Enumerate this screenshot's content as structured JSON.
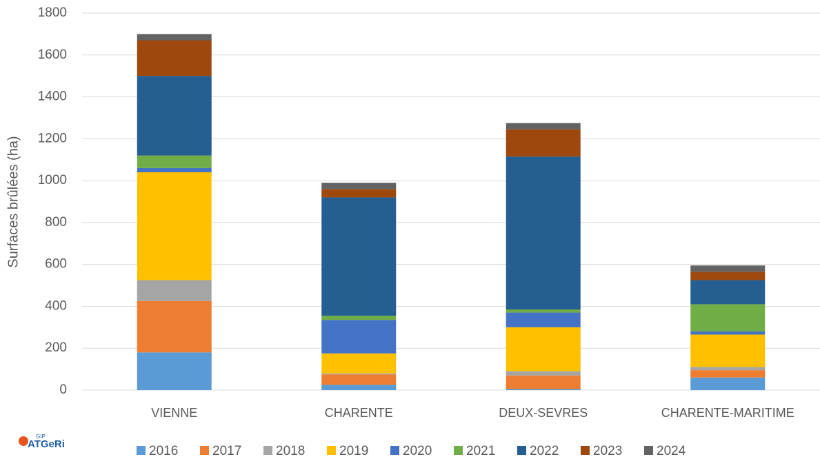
{
  "chart_data": {
    "type": "stacked_bar",
    "y_label": "Surfaces brûlées (ha)",
    "categories": [
      "VIENNE",
      "CHARENTE",
      "DEUX-SEVRES",
      "CHARENTE-MARITIME"
    ],
    "series": [
      {
        "name": "2016",
        "color": "#5b9bd5",
        "values": [
          180,
          25,
          5,
          60
        ]
      },
      {
        "name": "2017",
        "color": "#ed7d31",
        "values": [
          245,
          50,
          65,
          35
        ]
      },
      {
        "name": "2018",
        "color": "#a5a5a5",
        "values": [
          100,
          5,
          20,
          15
        ]
      },
      {
        "name": "2019",
        "color": "#ffc000",
        "values": [
          515,
          95,
          210,
          155
        ]
      },
      {
        "name": "2020",
        "color": "#4472c4",
        "values": [
          20,
          160,
          70,
          15
        ]
      },
      {
        "name": "2021",
        "color": "#70ad47",
        "values": [
          60,
          20,
          15,
          130
        ]
      },
      {
        "name": "2022",
        "color": "#255e91",
        "values": [
          380,
          565,
          730,
          115
        ]
      },
      {
        "name": "2023",
        "color": "#9e480e",
        "values": [
          170,
          40,
          130,
          40
        ]
      },
      {
        "name": "2024",
        "color": "#636363",
        "values": [
          30,
          30,
          30,
          30
        ]
      }
    ],
    "ylim": [
      0,
      1800
    ],
    "yticks": [
      0,
      200,
      400,
      600,
      800,
      1000,
      1200,
      1400,
      1600,
      1800
    ],
    "grid": true,
    "legend": "bottom"
  },
  "logo": {
    "gip": "GIP",
    "name": "ATGeRi"
  }
}
